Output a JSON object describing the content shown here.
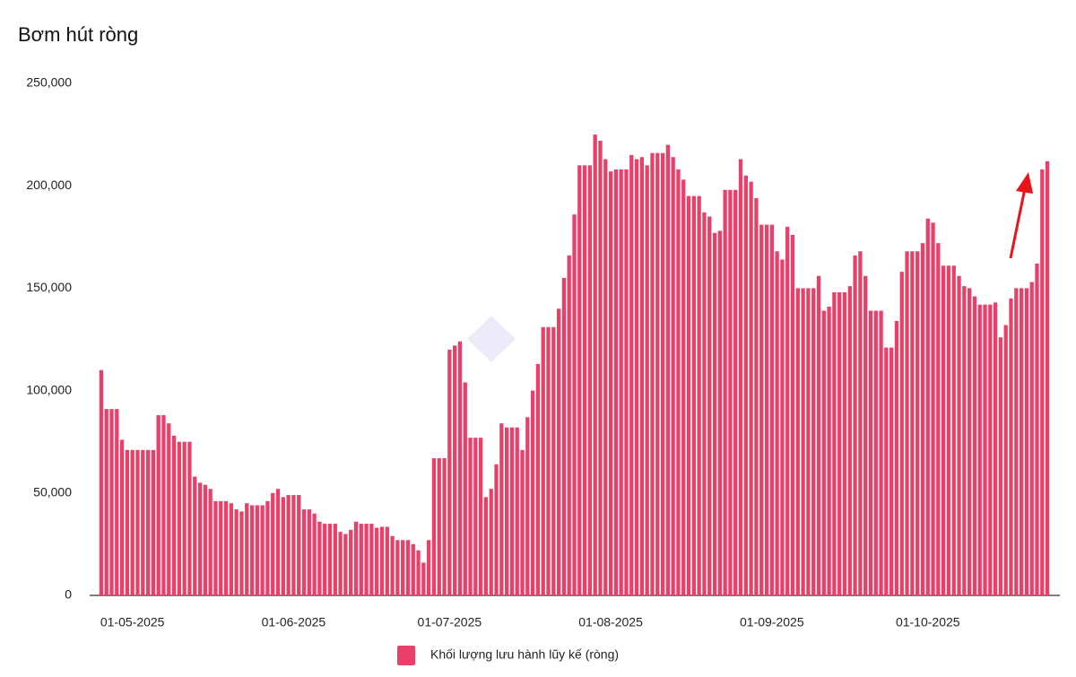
{
  "chart_data": {
    "type": "bar",
    "title": "Bơm hút ròng",
    "categories": [
      null,
      null,
      null,
      null,
      null,
      null,
      "01-05-2025",
      null,
      null,
      null,
      null,
      null,
      null,
      null,
      null,
      null,
      null,
      null,
      null,
      null,
      null,
      null,
      null,
      null,
      null,
      null,
      null,
      null,
      null,
      null,
      null,
      null,
      null,
      null,
      null,
      null,
      null,
      "01-06-2025",
      null,
      null,
      null,
      null,
      null,
      null,
      null,
      null,
      null,
      null,
      null,
      null,
      null,
      null,
      null,
      null,
      null,
      null,
      null,
      null,
      null,
      null,
      null,
      null,
      null,
      null,
      null,
      null,
      null,
      "01-07-2025",
      null,
      null,
      null,
      null,
      null,
      null,
      null,
      null,
      null,
      null,
      null,
      null,
      null,
      null,
      null,
      null,
      null,
      null,
      null,
      null,
      null,
      null,
      null,
      null,
      null,
      null,
      null,
      null,
      null,
      null,
      "01-08-2025",
      null,
      null,
      null,
      null,
      null,
      null,
      null,
      null,
      null,
      null,
      null,
      null,
      null,
      null,
      null,
      null,
      null,
      null,
      null,
      null,
      null,
      null,
      null,
      null,
      null,
      null,
      null,
      null,
      null,
      null,
      "01-09-2025",
      null,
      null,
      null,
      null,
      null,
      null,
      null,
      null,
      null,
      null,
      null,
      null,
      null,
      null,
      null,
      null,
      null,
      null,
      null,
      null,
      null,
      null,
      null,
      null,
      null,
      null,
      null,
      null,
      null,
      "01-10-2025",
      null,
      null,
      null,
      null,
      null,
      null,
      null,
      null,
      null,
      null,
      null,
      null,
      null,
      null,
      null,
      null,
      null,
      null,
      null,
      null,
      null,
      null,
      null
    ],
    "series": [
      {
        "name": "Khối lượng lưu hành lũy kế (ròng)",
        "color": "#e9406a",
        "values": [
          110000,
          91000,
          91000,
          91000,
          76000,
          71000,
          71000,
          71000,
          71000,
          71000,
          71000,
          88000,
          88000,
          84000,
          78000,
          75000,
          75000,
          75000,
          58000,
          55000,
          54000,
          52000,
          46000,
          46000,
          46000,
          45000,
          42000,
          41000,
          45000,
          44000,
          44000,
          44000,
          46000,
          50000,
          52000,
          48000,
          49000,
          49000,
          49000,
          42000,
          42000,
          40000,
          36000,
          35000,
          35000,
          35000,
          31000,
          30000,
          32000,
          36000,
          35000,
          35000,
          35000,
          33000,
          33500,
          33500,
          29000,
          27000,
          27000,
          27000,
          25000,
          22000,
          16000,
          27000,
          67000,
          67000,
          67000,
          120000,
          122000,
          124000,
          104000,
          77000,
          77000,
          77000,
          48000,
          52000,
          64000,
          84000,
          82000,
          82000,
          82000,
          71000,
          87000,
          100000,
          113000,
          131000,
          131000,
          131000,
          140000,
          155000,
          166000,
          186000,
          210000,
          210000,
          210000,
          225000,
          222000,
          213000,
          207000,
          208000,
          208000,
          208000,
          215000,
          213000,
          214000,
          210000,
          216000,
          216000,
          216000,
          220000,
          214000,
          208000,
          203000,
          195000,
          195000,
          195000,
          187000,
          185000,
          177000,
          178000,
          198000,
          198000,
          198000,
          213000,
          205000,
          202000,
          194000,
          181000,
          181000,
          181000,
          168000,
          164000,
          180000,
          176000,
          150000,
          150000,
          150000,
          150000,
          156000,
          139000,
          141000,
          148000,
          148000,
          148000,
          151000,
          166000,
          168000,
          156000,
          139000,
          139000,
          139000,
          121000,
          121000,
          134000,
          158000,
          168000,
          168000,
          168000,
          172000,
          184000,
          182000,
          172000,
          161000,
          161000,
          161000,
          156000,
          151000,
          150000,
          146000,
          142000,
          142000,
          142000,
          143000,
          126000,
          132000,
          145000,
          150000,
          150000,
          150000,
          153000,
          162000,
          208000,
          212000
        ]
      }
    ],
    "ylim": [
      0,
      250000
    ],
    "yticks": [
      0,
      {
        "value": 50000,
        "label": "50,000"
      },
      {
        "value": 100000,
        "label": "100,000"
      },
      {
        "value": 150000,
        "label": "150,000"
      },
      {
        "value": 200000,
        "label": "200,000"
      },
      {
        "value": 250000,
        "label": "250,000"
      }
    ],
    "grid": false
  }
}
